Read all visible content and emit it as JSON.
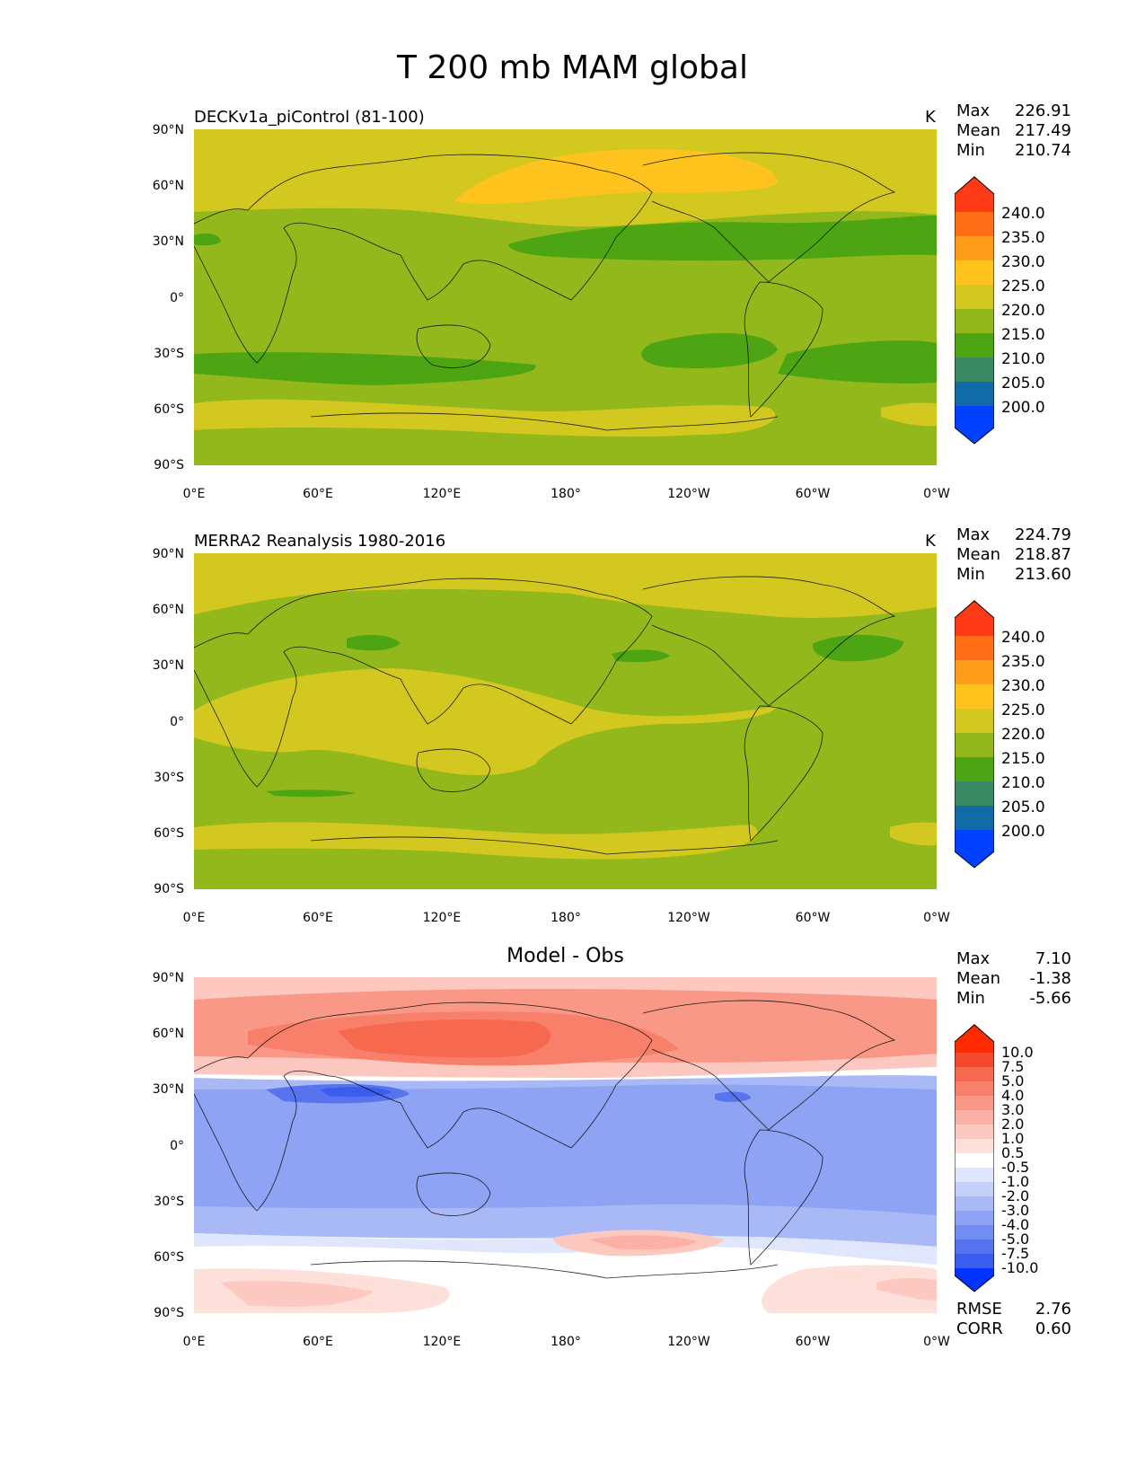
{
  "figure": {
    "title": "T 200 mb MAM global"
  },
  "axes": {
    "y_ticks": [
      "90°N",
      "60°N",
      "30°N",
      "0°",
      "30°S",
      "60°S",
      "90°S"
    ],
    "x_ticks": [
      "0°E",
      "60°E",
      "120°E",
      "180°",
      "120°W",
      "60°W",
      "0°W"
    ]
  },
  "panels": [
    {
      "title": "DECKv1a_piControl (81-100)",
      "units": "K",
      "stats": {
        "max_label": "Max",
        "max": "226.91",
        "mean_label": "Mean",
        "mean": "217.49",
        "min_label": "Min",
        "min": "210.74"
      },
      "colorbar": {
        "labels": [
          "240.0",
          "235.0",
          "230.0",
          "225.0",
          "220.0",
          "215.0",
          "210.0",
          "205.0",
          "200.0"
        ],
        "colors": [
          "#ff3a17",
          "#ff6d16",
          "#ff9e1a",
          "#ffc31d",
          "#d2c81f",
          "#93b81b",
          "#4da513",
          "#3a8a66",
          "#0f6aa6",
          "#0040ff"
        ]
      }
    },
    {
      "title": "MERRA2 Reanalysis 1980-2016",
      "units": "K",
      "stats": {
        "max_label": "Max",
        "max": "224.79",
        "mean_label": "Mean",
        "mean": "218.87",
        "min_label": "Min",
        "min": "213.60"
      },
      "colorbar": {
        "labels": [
          "240.0",
          "235.0",
          "230.0",
          "225.0",
          "220.0",
          "215.0",
          "210.0",
          "205.0",
          "200.0"
        ],
        "colors": [
          "#ff3a17",
          "#ff6d16",
          "#ff9e1a",
          "#ffc31d",
          "#d2c81f",
          "#93b81b",
          "#4da513",
          "#3a8a66",
          "#0f6aa6",
          "#0040ff"
        ]
      }
    },
    {
      "title": "Model - Obs",
      "units": "",
      "stats": {
        "max_label": "Max",
        "max": "7.10",
        "mean_label": "Mean",
        "mean": "-1.38",
        "min_label": "Min",
        "min": "-5.66"
      },
      "bottom_stats": {
        "rmse_label": "RMSE",
        "rmse": "2.76",
        "corr_label": "CORR",
        "corr": "0.60"
      },
      "colorbar": {
        "labels": [
          "10.0",
          "7.5",
          "5.0",
          "4.0",
          "3.0",
          "2.0",
          "1.0",
          "0.5",
          "-0.5",
          "-1.0",
          "-2.0",
          "-3.0",
          "-4.0",
          "-5.0",
          "-7.5",
          "-10.0"
        ],
        "colors": [
          "#ff2a00",
          "#f5492e",
          "#f7694f",
          "#f8806b",
          "#fa9887",
          "#fbb1a5",
          "#fcc8bf",
          "#fde0d9",
          "#ffffff",
          "#e0e6fb",
          "#c5d0f8",
          "#a9b9f6",
          "#8ea3f3",
          "#738cf0",
          "#5774ee",
          "#3b5cec",
          "#0033ff"
        ]
      }
    }
  ]
}
